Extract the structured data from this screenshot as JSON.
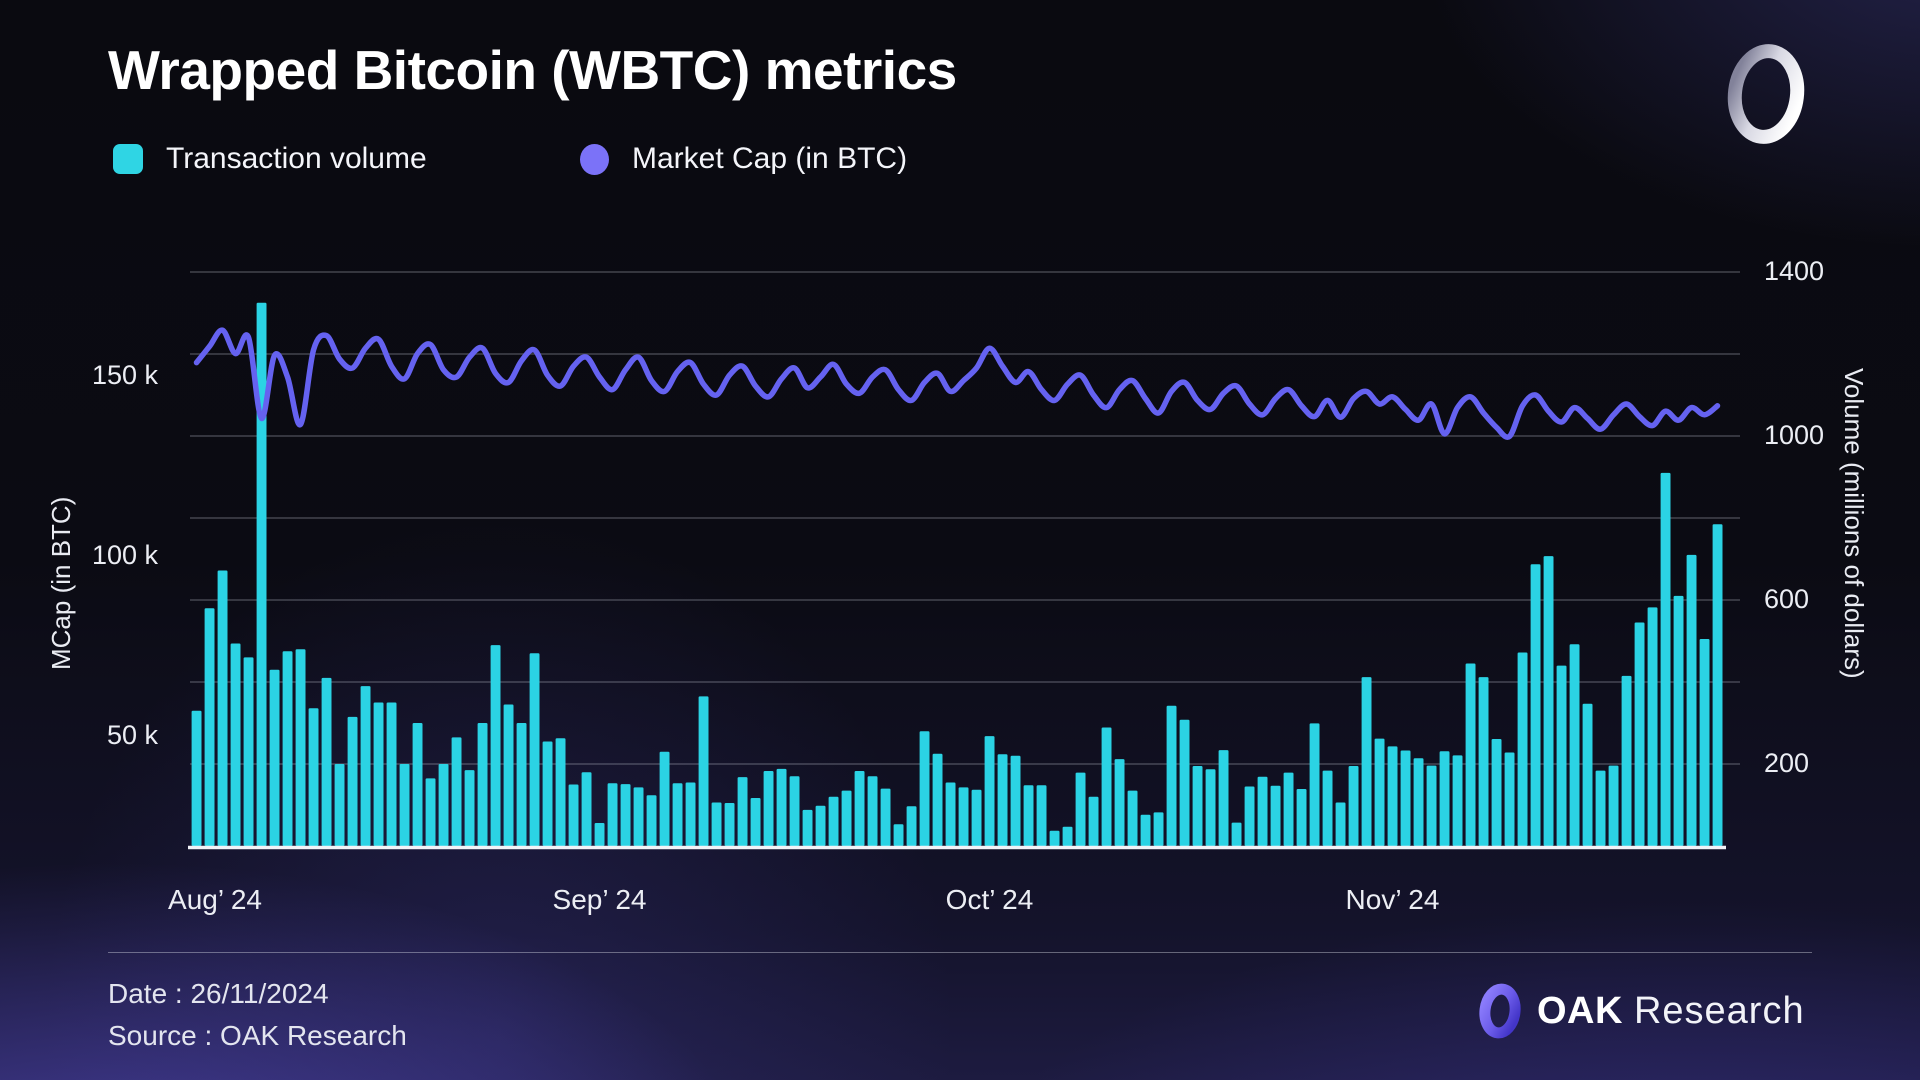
{
  "header": {
    "title": "Wrapped Bitcoin (WBTC) metrics"
  },
  "legend": {
    "volume_label": "Transaction volume",
    "mcap_label": "Market Cap (in BTC)"
  },
  "colors": {
    "bar": "#2bd3e4",
    "line": "#6562f0",
    "legend_square": "#2fd5e4",
    "legend_circle": "#7b72f8",
    "gridline": "rgba(190,192,205,0.32)",
    "baseline": "#f2f3f7"
  },
  "footer": {
    "date": "Date : 26/11/2024",
    "source": "Source : OAK Research",
    "brand_bold": "OAK",
    "brand_regular": "Research"
  },
  "chart_data": {
    "type": "bar+line dual-axis daily time series",
    "title": "Wrapped Bitcoin (WBTC) metrics",
    "x_axis": {
      "start_date": "2024-08-01",
      "end_date": "2024-11-26",
      "days": 118,
      "tick_labels": [
        {
          "label": "Aug’ 24",
          "day_index": 0
        },
        {
          "label": "Sep’ 24",
          "day_index": 31
        },
        {
          "label": "Oct’ 24",
          "day_index": 61
        },
        {
          "label": "Nov’ 24",
          "day_index": 92
        }
      ]
    },
    "left_axis": {
      "title": "MCap (in BTC)",
      "ticks": [
        {
          "label": "150 k",
          "value": 150000
        },
        {
          "label": "100 k",
          "value": 100000
        },
        {
          "label": "50 k",
          "value": 50000
        }
      ]
    },
    "right_axis": {
      "title": "Volume (millions of dollars)",
      "ticks": [
        {
          "label": "1400",
          "value": 1400
        },
        {
          "label": "1000",
          "value": 1000
        },
        {
          "label": "600",
          "value": 600
        },
        {
          "label": "200",
          "value": 200
        }
      ],
      "grid_values": [
        200,
        400,
        600,
        800,
        1000,
        1200,
        1400
      ],
      "ylim": [
        0,
        1525
      ]
    },
    "series": [
      {
        "name": "Transaction volume",
        "type": "bar",
        "axis": "right",
        "unit": "millions of dollars",
        "values": [
          330,
          580,
          672,
          494,
          460,
          1325,
          430,
          475,
          480,
          336,
          410,
          200,
          315,
          390,
          350,
          350,
          200,
          300,
          165,
          200,
          265,
          185,
          300,
          490,
          345,
          300,
          470,
          255,
          263,
          150,
          180,
          56,
          153,
          151,
          143,
          124,
          230,
          153,
          155,
          365,
          106,
          105,
          168,
          117,
          183,
          188,
          170,
          88,
          98,
          120,
          135,
          183,
          170,
          140,
          53,
          97,
          280,
          225,
          155,
          143,
          137,
          268,
          224,
          220,
          148,
          148,
          37,
          47,
          179,
          120,
          289,
          212,
          135,
          76,
          82,
          342,
          308,
          195,
          187,
          234,
          57,
          145,
          169,
          147,
          179,
          139,
          299,
          184,
          106,
          195,
          412,
          262,
          243,
          233,
          214,
          196,
          231,
          221,
          445,
          412,
          261,
          228,
          472,
          687,
          707,
          440,
          492,
          347,
          184,
          196,
          415,
          545,
          582,
          910,
          610,
          710,
          505,
          785
        ]
      },
      {
        "name": "Market Cap (in BTC)",
        "type": "line",
        "axis": "left",
        "unit": "BTC",
        "values": [
          154000,
          158500,
          163000,
          156500,
          161000,
          138500,
          156000,
          150000,
          136800,
          157500,
          161500,
          155000,
          152500,
          158000,
          160500,
          153000,
          149500,
          156500,
          159000,
          152000,
          150000,
          155500,
          158000,
          151000,
          148500,
          154500,
          157500,
          150500,
          147500,
          153000,
          155500,
          150000,
          146500,
          152000,
          155500,
          149000,
          146000,
          151500,
          154000,
          148000,
          145000,
          150500,
          153000,
          147500,
          144500,
          149500,
          152500,
          147000,
          150000,
          153500,
          148000,
          145500,
          150000,
          152000,
          146500,
          143500,
          148500,
          151000,
          146000,
          149000,
          152500,
          158000,
          153000,
          148500,
          151500,
          146500,
          143500,
          148000,
          150500,
          145000,
          141500,
          146500,
          149000,
          144000,
          140000,
          146000,
          148500,
          143500,
          141000,
          145500,
          147500,
          142500,
          139500,
          144000,
          146500,
          142000,
          139000,
          143500,
          138800,
          144000,
          146000,
          142500,
          144500,
          141000,
          138000,
          142500,
          134200,
          141500,
          144500,
          140000,
          136000,
          133500,
          142000,
          145000,
          140500,
          137500,
          141500,
          138500,
          135500,
          139500,
          142500,
          139000,
          136500,
          140500,
          138000,
          141500,
          139500,
          142000
        ]
      }
    ],
    "legend_position": "top-left",
    "grid": "horizontal only"
  }
}
